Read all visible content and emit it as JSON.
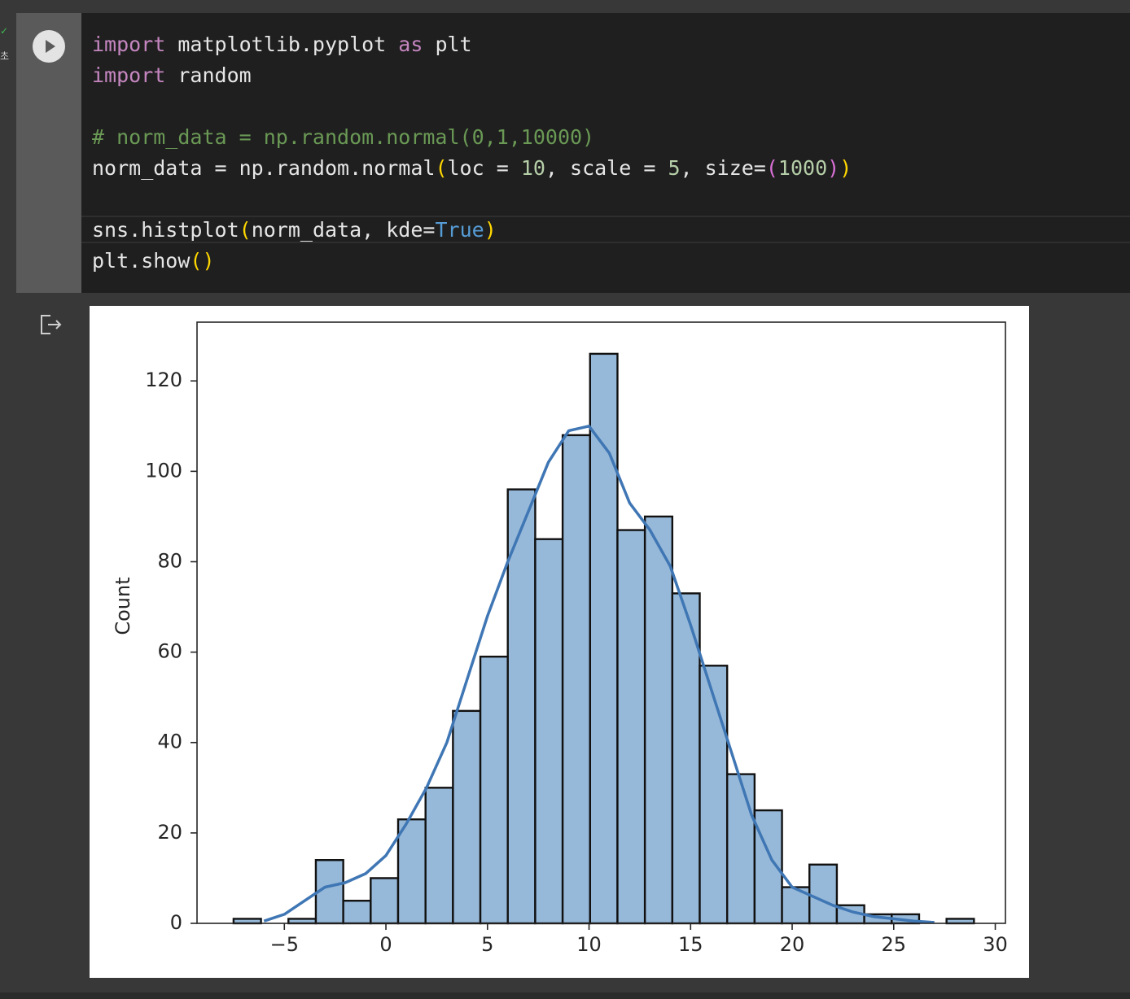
{
  "exec_status": {
    "check": "✓",
    "time_label": "초"
  },
  "cell": {
    "run_icon": "play-icon",
    "code_lines": [
      [
        [
          "kw",
          "import"
        ],
        [
          "t",
          " matplotlib.pyplot "
        ],
        [
          "kw",
          "as"
        ],
        [
          "t",
          " plt"
        ]
      ],
      [
        [
          "kw",
          "import"
        ],
        [
          "t",
          " random"
        ]
      ],
      [],
      [
        [
          "cm",
          "# norm_data = np.random.normal(0,1,10000)"
        ]
      ],
      [
        [
          "t",
          "norm_data = np.random.normal"
        ],
        [
          "br1",
          "("
        ],
        [
          "t",
          "loc = "
        ],
        [
          "num",
          "10"
        ],
        [
          "t",
          ", scale = "
        ],
        [
          "num",
          "5"
        ],
        [
          "t",
          ", size="
        ],
        [
          "br2",
          "("
        ],
        [
          "num",
          "1000"
        ],
        [
          "br2",
          ")"
        ],
        [
          "br1",
          ")"
        ]
      ],
      [],
      [
        [
          "t",
          "sns.histplot"
        ],
        [
          "br1",
          "("
        ],
        [
          "t",
          "norm_data, kde="
        ],
        [
          "bool",
          "True"
        ],
        [
          "br1",
          ")"
        ]
      ],
      [
        [
          "t",
          "plt.show"
        ],
        [
          "br1",
          "()"
        ]
      ]
    ]
  },
  "output": {
    "icon": "output-redirect-icon"
  },
  "colors": {
    "bar_fill": "#97b9d9",
    "bar_edge": "#111111",
    "kde_line": "#3f76b4",
    "keyword": "#c586c0",
    "comment": "#6a9955",
    "number": "#b5cea8",
    "bracket1": "#ffd700",
    "bracket2": "#da70d6",
    "boolean": "#569cd6"
  },
  "chart_data": {
    "type": "bar",
    "title": "",
    "xlabel": "",
    "ylabel": "Count",
    "xlim": [
      -9.3,
      30.5
    ],
    "ylim": [
      0,
      133
    ],
    "xticks": [
      -5,
      0,
      5,
      10,
      15,
      20,
      25,
      30
    ],
    "xtick_labels": [
      "−5",
      "0",
      "5",
      "10",
      "15",
      "20",
      "25",
      "30"
    ],
    "yticks": [
      0,
      20,
      40,
      60,
      80,
      100,
      120
    ],
    "ytick_labels": [
      "0",
      "20",
      "40",
      "60",
      "80",
      "100",
      "120"
    ],
    "bins": {
      "edges": [
        -7.5,
        -6.15,
        -4.8,
        -3.45,
        -2.1,
        -0.75,
        0.6,
        1.95,
        3.3,
        4.65,
        6.0,
        7.35,
        8.7,
        10.05,
        11.4,
        12.75,
        14.1,
        15.45,
        16.8,
        18.15,
        19.5,
        20.85,
        22.2,
        23.55,
        24.9,
        26.25,
        27.6,
        28.95
      ],
      "counts": [
        1,
        0,
        1,
        14,
        5,
        10,
        23,
        30,
        47,
        59,
        96,
        85,
        108,
        126,
        87,
        90,
        73,
        57,
        33,
        25,
        8,
        13,
        4,
        2,
        2,
        0,
        1
      ]
    },
    "kde": {
      "x": [
        -6,
        -5,
        -4,
        -3,
        -2,
        -1,
        0,
        1,
        2,
        3,
        4,
        5,
        6,
        7,
        8,
        9,
        10,
        11,
        12,
        13,
        14,
        15,
        16,
        17,
        18,
        19,
        20,
        21,
        22,
        23,
        24,
        25,
        26,
        27
      ],
      "y": [
        0.5,
        2,
        5,
        8,
        9,
        11,
        15,
        22,
        30,
        40,
        54,
        68,
        80,
        91,
        102,
        109,
        110,
        104,
        93,
        87,
        79,
        66,
        52,
        38,
        24,
        14,
        8,
        6,
        4,
        2.5,
        1.5,
        1,
        0.5,
        0.2
      ]
    },
    "grid": false,
    "legend": "none"
  }
}
